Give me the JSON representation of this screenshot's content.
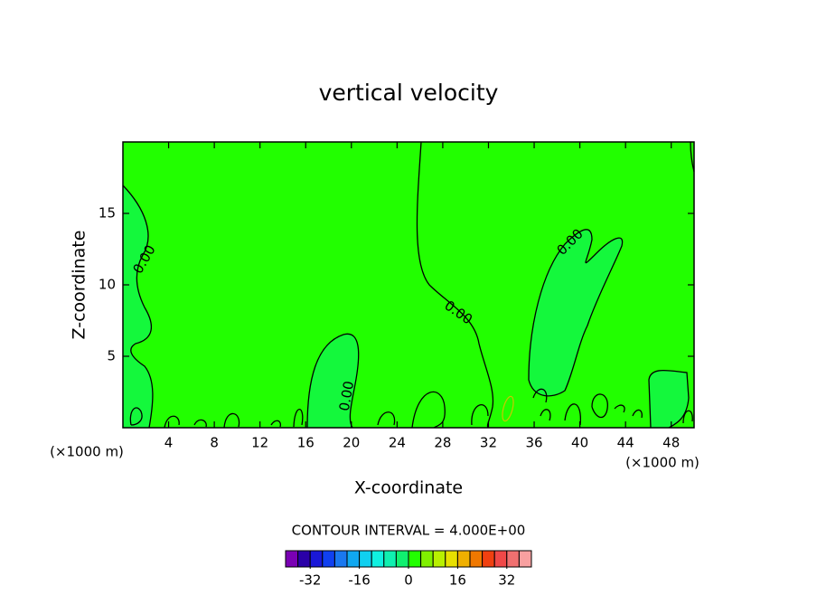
{
  "chart_data": {
    "type": "contour",
    "title": "vertical velocity",
    "x_label": "X-coordinate",
    "y_label": "Z-coordinate",
    "x_unit": "(×1000 m)",
    "xlim": [
      0,
      50
    ],
    "xticks": [
      4,
      8,
      12,
      16,
      20,
      24,
      28,
      32,
      36,
      40,
      44,
      48
    ],
    "ylim": [
      0,
      20
    ],
    "yticks": [
      5,
      10,
      15
    ],
    "contour_labels": [
      "0.00",
      "0.00",
      "0.00",
      "0.00"
    ],
    "contour_interval_label": "CONTOUR INTERVAL = 4.000E+00",
    "colorbar": {
      "lim": [
        -40,
        40
      ],
      "ticks": [
        -32,
        -16,
        0,
        16,
        32
      ],
      "colors": [
        "#7a00b4",
        "#2a00a8",
        "#1a18d8",
        "#1040f0",
        "#1a78f0",
        "#10a8f0",
        "#10d0f0",
        "#10f0e0",
        "#10f0b0",
        "#10f070",
        "#22ff00",
        "#80f000",
        "#b8f000",
        "#e8e000",
        "#f0b000",
        "#f07800",
        "#f04010",
        "#f04848",
        "#f07070",
        "#f8a0a0"
      ]
    }
  }
}
